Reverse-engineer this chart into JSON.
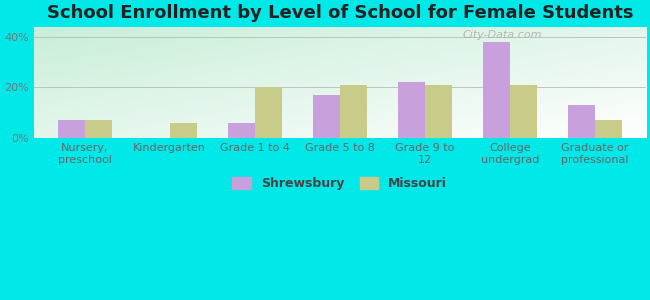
{
  "title": "School Enrollment by Level of School for Female Students",
  "categories": [
    "Nursery,\npreschool",
    "Kindergarten",
    "Grade 1 to 4",
    "Grade 5 to 8",
    "Grade 9 to\n12",
    "College\nundergrad",
    "Graduate or\nprofessional"
  ],
  "shrewsbury": [
    7,
    0,
    6,
    17,
    22,
    38,
    13
  ],
  "missouri": [
    7,
    6,
    20,
    21,
    21,
    21,
    7
  ],
  "shrewsbury_color": "#c8a0dc",
  "missouri_color": "#c8cc88",
  "background_color": "#00e8e8",
  "plot_bg": "#d8f0e0",
  "ylabel_ticks": [
    "0%",
    "20%",
    "40%"
  ],
  "yticks": [
    0,
    20,
    40
  ],
  "ylim": [
    0,
    44
  ],
  "bar_width": 0.32,
  "title_fontsize": 13,
  "tick_fontsize": 8,
  "legend_fontsize": 9
}
